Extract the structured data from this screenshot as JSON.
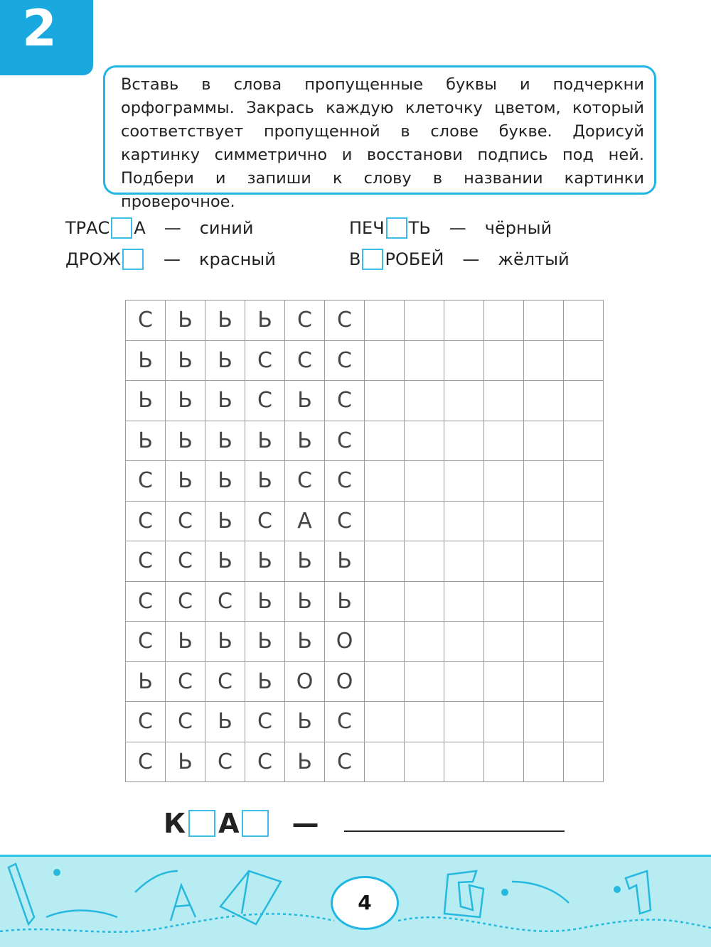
{
  "task_number": "2",
  "instructions": "Вставь в слова пропущенные буквы и подчеркни орфограммы. Закрась каждую клеточку цветом, который соответствует пропущенной в слове букве. Дорисуй картинку симметрично и восстанови подпись под ней. Подбери и запиши к слову в названии картинки проверочное.",
  "key": [
    {
      "before": "ТРАС",
      "after": "А",
      "dash": "—",
      "color": "синий"
    },
    {
      "before": "ДРОЖ",
      "after": "",
      "dash": "—",
      "color": "красный"
    },
    {
      "before": "ПЕЧ",
      "after": "ТЬ",
      "dash": "—",
      "color": "чёрный"
    },
    {
      "before": "В",
      "after": "РОБЕЙ",
      "dash": "—",
      "color": "жёлтый"
    }
  ],
  "grid": [
    [
      "С",
      "Ь",
      "Ь",
      "Ь",
      "С",
      "С",
      "",
      "",
      "",
      "",
      "",
      ""
    ],
    [
      "Ь",
      "Ь",
      "Ь",
      "С",
      "С",
      "С",
      "",
      "",
      "",
      "",
      "",
      ""
    ],
    [
      "Ь",
      "Ь",
      "Ь",
      "С",
      "Ь",
      "С",
      "",
      "",
      "",
      "",
      "",
      ""
    ],
    [
      "Ь",
      "Ь",
      "Ь",
      "Ь",
      "Ь",
      "С",
      "",
      "",
      "",
      "",
      "",
      ""
    ],
    [
      "С",
      "Ь",
      "Ь",
      "Ь",
      "С",
      "С",
      "",
      "",
      "",
      "",
      "",
      ""
    ],
    [
      "С",
      "С",
      "Ь",
      "С",
      "А",
      "С",
      "",
      "",
      "",
      "",
      "",
      ""
    ],
    [
      "С",
      "С",
      "Ь",
      "Ь",
      "Ь",
      "Ь",
      "",
      "",
      "",
      "",
      "",
      ""
    ],
    [
      "С",
      "С",
      "С",
      "Ь",
      "Ь",
      "Ь",
      "",
      "",
      "",
      "",
      "",
      ""
    ],
    [
      "С",
      "Ь",
      "Ь",
      "Ь",
      "Ь",
      "О",
      "",
      "",
      "",
      "",
      "",
      ""
    ],
    [
      "Ь",
      "С",
      "С",
      "Ь",
      "О",
      "О",
      "",
      "",
      "",
      "",
      "",
      ""
    ],
    [
      "С",
      "С",
      "Ь",
      "С",
      "Ь",
      "С",
      "",
      "",
      "",
      "",
      "",
      ""
    ],
    [
      "С",
      "Ь",
      "С",
      "С",
      "Ь",
      "С",
      "",
      "",
      "",
      "",
      "",
      ""
    ]
  ],
  "answer": {
    "letter1": "К",
    "letter2": "А",
    "dash": "—"
  },
  "page_number": "4",
  "colors": {
    "accent": "#1aa9df",
    "footer_bg": "#b6ecf2"
  }
}
